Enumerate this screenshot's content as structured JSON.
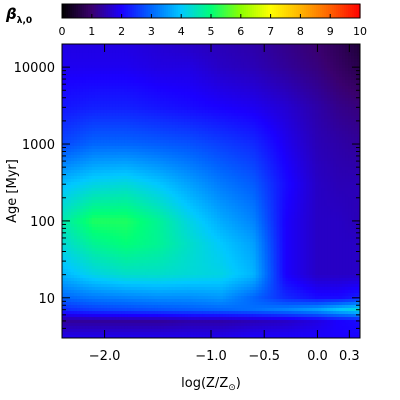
{
  "chart_data": {
    "type": "heatmap",
    "colorbar": {
      "label": "β",
      "label_sub": "λ,0",
      "min": 0,
      "max": 10,
      "ticks": [
        "0",
        "1",
        "2",
        "3",
        "4",
        "5",
        "6",
        "7",
        "8",
        "9",
        "10"
      ],
      "colormap": [
        "#000000",
        "#3a006e",
        "#1a00ff",
        "#0066ff",
        "#00c8ff",
        "#00ff78",
        "#8cff00",
        "#ffff00",
        "#ffb400",
        "#ff6000",
        "#ff0000"
      ]
    },
    "x_axis": {
      "label": "log(Z/Z",
      "label_sub": "⊙",
      "label_end": ")",
      "range": [
        -2.4,
        0.4
      ],
      "ticks": [
        {
          "value": -2.0,
          "label": "−2.0"
        },
        {
          "value": -1.0,
          "label": "−1.0"
        },
        {
          "value": -0.5,
          "label": "−0.5"
        },
        {
          "value": 0.0,
          "label": "0.0"
        },
        {
          "value": 0.3,
          "label": "0.3"
        }
      ]
    },
    "y_axis": {
      "label": "Age [Myr]",
      "scale": "log",
      "range": [
        3,
        20000
      ],
      "ticks": [
        {
          "value": 10,
          "label": "10"
        },
        {
          "value": 100,
          "label": "100"
        },
        {
          "value": 1000,
          "label": "1000"
        },
        {
          "value": 10000,
          "label": "10000"
        }
      ]
    },
    "z_grid": {
      "x": [
        -2.4,
        -2.1,
        -1.8,
        -1.5,
        -1.2,
        -0.9,
        -0.6,
        -0.3,
        0.0,
        0.2,
        0.4
      ],
      "y": [
        3,
        5,
        7,
        10,
        20,
        50,
        100,
        300,
        1000,
        3000,
        10000,
        20000
      ],
      "values": [
        [
          1.9,
          1.9,
          1.9,
          1.9,
          1.9,
          1.9,
          2.0,
          2.0,
          2.0,
          2.0,
          2.0
        ],
        [
          1.3,
          1.3,
          1.3,
          1.3,
          1.4,
          1.4,
          1.5,
          1.6,
          1.8,
          2.0,
          2.1
        ],
        [
          2.4,
          2.6,
          2.7,
          2.8,
          2.9,
          3.0,
          3.1,
          3.3,
          3.6,
          4.0,
          4.3
        ],
        [
          3.0,
          3.2,
          3.3,
          3.4,
          3.4,
          3.5,
          3.0,
          2.4,
          2.1,
          2.1,
          2.3
        ],
        [
          3.8,
          4.2,
          4.4,
          4.4,
          4.3,
          4.2,
          3.8,
          2.0,
          1.6,
          1.6,
          1.6
        ],
        [
          4.3,
          4.8,
          5.0,
          4.8,
          4.4,
          4.0,
          3.6,
          2.0,
          1.6,
          1.6,
          1.6
        ],
        [
          4.6,
          5.2,
          5.2,
          4.8,
          4.2,
          3.7,
          3.3,
          2.0,
          1.6,
          1.6,
          1.5
        ],
        [
          3.9,
          4.2,
          4.3,
          4.0,
          3.6,
          3.2,
          2.9,
          2.1,
          1.6,
          1.5,
          1.5
        ],
        [
          2.7,
          3.0,
          3.0,
          2.9,
          2.8,
          2.6,
          2.4,
          1.9,
          1.5,
          1.4,
          1.3
        ],
        [
          2.2,
          2.3,
          2.3,
          2.2,
          2.1,
          2.0,
          1.9,
          1.7,
          1.4,
          1.2,
          1.1
        ],
        [
          1.9,
          1.9,
          1.9,
          1.8,
          1.8,
          1.6,
          1.5,
          1.3,
          1.1,
          0.9,
          0.7
        ],
        [
          1.8,
          1.8,
          1.8,
          1.7,
          1.6,
          1.5,
          1.4,
          1.2,
          1.0,
          0.8,
          0.5
        ]
      ]
    }
  }
}
